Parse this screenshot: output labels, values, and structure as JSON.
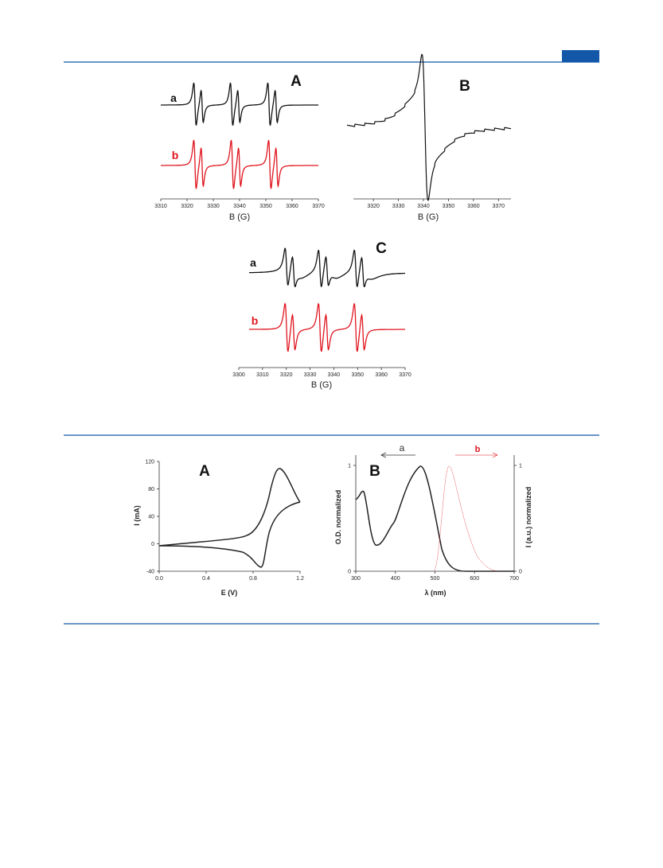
{
  "figure1": {
    "panels": [
      {
        "label": "A",
        "trace_labels": [
          "a",
          "b"
        ],
        "x_label": "B (G)",
        "xlim": [
          3310,
          3370
        ],
        "xticks": [
          3310,
          3320,
          3330,
          3340,
          3350,
          3360,
          3370
        ]
      },
      {
        "label": "B",
        "x_label": "B (G)",
        "xlim": [
          3312,
          3375
        ],
        "xticks": [
          3320,
          3330,
          3340,
          3350,
          3360,
          3370
        ]
      },
      {
        "label": "C",
        "trace_labels": [
          "a",
          "b"
        ],
        "x_label": "B (G)",
        "xlim": [
          3300,
          3370
        ],
        "xticks": [
          3300,
          3310,
          3320,
          3330,
          3340,
          3350,
          3360,
          3370
        ]
      }
    ]
  },
  "figure2": {
    "panels": [
      {
        "label": "A",
        "x_label": "E (V)",
        "y_label": "I (mA)",
        "xlim": [
          0,
          1.2
        ],
        "ylim": [
          -40,
          120
        ],
        "xticks": [
          {
            "value": 0,
            "label": "0.0"
          },
          0.4,
          0.8,
          1.2
        ],
        "yticks": [
          120,
          80,
          40,
          0,
          -40
        ]
      },
      {
        "label": "B",
        "arrow_labels": [
          "a",
          "b"
        ],
        "x_label": "λ (nm)",
        "y_label": "O.D. normalized",
        "y2_label": "I (a.u.) normalized",
        "xlim": [
          300,
          700
        ],
        "ylim": [
          0,
          1
        ],
        "y2lim": [
          0,
          1
        ],
        "xticks": [
          300,
          400,
          500,
          600,
          700
        ],
        "yticks": [
          0,
          1
        ],
        "y2ticks": [
          0,
          1
        ]
      }
    ]
  }
}
